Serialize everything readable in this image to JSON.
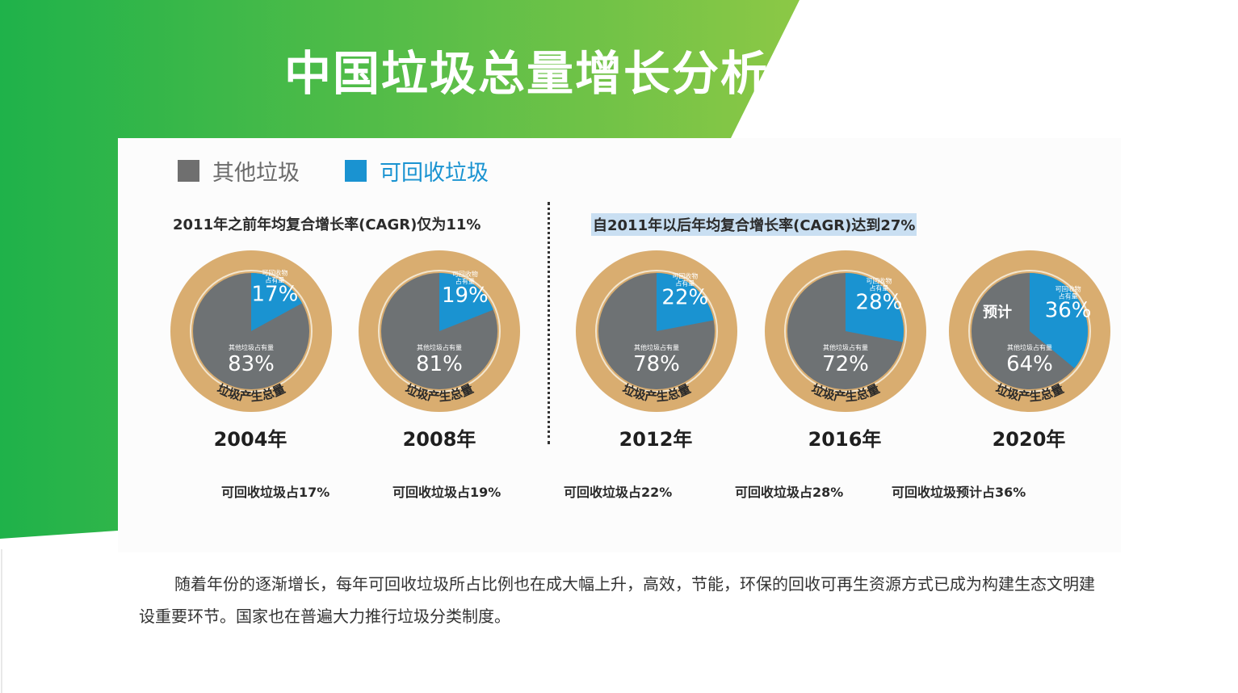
{
  "title": "中国垃圾总量增长分析",
  "legend": [
    {
      "label": "其他垃圾",
      "color": "#6f6f6f"
    },
    {
      "label": "可回收垃圾",
      "color": "#1a93d1"
    }
  ],
  "cagr_before": "2011年之前年均复合增长率(CAGR)仅为11%",
  "cagr_after": "自2011年以后年均复合增长率(CAGR)达到27%",
  "chart_data": {
    "type": "pie",
    "ring_label": "垃圾产生总量",
    "recyclable_label": "可回收物占有量",
    "other_label": "其他垃圾占有量",
    "forecast_label": "预计",
    "years": [
      {
        "year": "2004年",
        "recyclable": 17,
        "other": 83,
        "recyclable_text": "17%",
        "other_text": "83%"
      },
      {
        "year": "2008年",
        "recyclable": 19,
        "other": 81,
        "recyclable_text": "19%",
        "other_text": "81%"
      },
      {
        "year": "2012年",
        "recyclable": 22,
        "other": 78,
        "recyclable_text": "22%",
        "other_text": "78%"
      },
      {
        "year": "2016年",
        "recyclable": 28,
        "other": 72,
        "recyclable_text": "28%",
        "other_text": "72%"
      },
      {
        "year": "2020年",
        "recyclable": 36,
        "other": 64,
        "recyclable_text": "36%",
        "other_text": "64%",
        "forecast": true
      }
    ],
    "colors": {
      "recyclable": "#1a93d1",
      "other": "#6e7274",
      "ring": "#d9ad70"
    }
  },
  "timeline": [
    "可回收垃圾占17%",
    "可回收垃圾占19%",
    "可回收垃圾占22%",
    "可回收垃圾占28%",
    "可回收垃圾预计占36%"
  ],
  "description": "随着年份的逐渐增长，每年可回收垃圾所占比例也在成大幅上升，高效，节能，环保的回收可再生资源方式已成为构建生态文明建设重要环节。国家也在普遍大力推行垃圾分类制度。"
}
